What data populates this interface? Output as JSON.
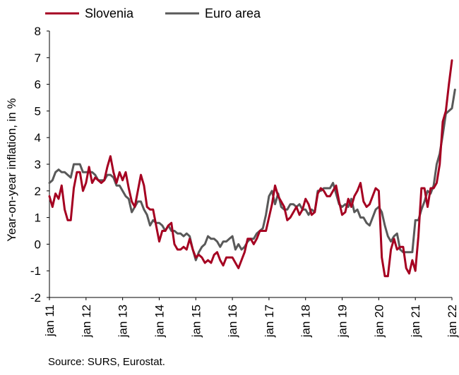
{
  "chart_data": {
    "type": "line",
    "title": "",
    "xlabel": "",
    "ylabel": "Year-on-year inflation, in %",
    "ylim": [
      -2,
      8
    ],
    "yticks": [
      -2,
      -1,
      0,
      1,
      2,
      3,
      4,
      5,
      6,
      7,
      8
    ],
    "xticks": [
      "jan 11",
      "jan 12",
      "jan 13",
      "jan 14",
      "jan 15",
      "jan 16",
      "jan 17",
      "jan 18",
      "jan 19",
      "jan 20",
      "jan 21",
      "jan 22"
    ],
    "x_start": "jan 11",
    "x_end": "jan 22",
    "frequency": "monthly",
    "grid": false,
    "legend_position": "top",
    "series": [
      {
        "name": "Slovenia",
        "color": "#A50021",
        "values": [
          1.8,
          1.4,
          1.9,
          1.7,
          2.2,
          1.3,
          0.9,
          0.9,
          2.1,
          2.7,
          2.7,
          2.0,
          2.3,
          2.9,
          2.3,
          2.5,
          2.4,
          2.3,
          2.4,
          2.9,
          3.3,
          2.7,
          2.3,
          2.7,
          2.4,
          2.7,
          2.1,
          1.6,
          1.4,
          2.0,
          2.6,
          2.2,
          1.4,
          1.3,
          1.3,
          0.7,
          0.1,
          0.5,
          0.5,
          0.7,
          0.8,
          0.0,
          -0.2,
          -0.2,
          -0.1,
          -0.2,
          0.2,
          -0.2,
          -0.5,
          -0.4,
          -0.5,
          -0.7,
          -0.6,
          -0.7,
          -0.4,
          -0.3,
          -0.6,
          -0.8,
          -0.5,
          -0.5,
          -0.5,
          -0.7,
          -0.9,
          -0.6,
          -0.3,
          0.2,
          0.2,
          0.0,
          0.2,
          0.5,
          0.5,
          0.5,
          1.0,
          1.5,
          2.2,
          1.8,
          1.6,
          1.4,
          0.9,
          1.0,
          1.2,
          1.4,
          1.1,
          1.3,
          1.7,
          1.5,
          1.1,
          1.2,
          1.9,
          2.1,
          2.0,
          1.8,
          1.8,
          2.0,
          2.2,
          1.6,
          1.1,
          1.2,
          1.7,
          1.4,
          1.8,
          2.0,
          2.3,
          1.6,
          1.4,
          1.5,
          1.8,
          2.1,
          2.0,
          -0.5,
          -1.2,
          -1.2,
          -0.2,
          0.2,
          -0.2,
          -0.1,
          -0.1,
          -0.9,
          -1.1,
          -0.6,
          -1.0,
          0.3,
          2.1,
          2.1,
          1.4,
          2.1,
          2.1,
          2.3,
          3.0,
          4.6,
          5.0,
          6.0,
          6.9
        ]
      },
      {
        "name": "Euro area",
        "color": "#595959",
        "values": [
          2.3,
          2.4,
          2.7,
          2.8,
          2.7,
          2.7,
          2.6,
          2.5,
          3.0,
          3.0,
          3.0,
          2.7,
          2.7,
          2.7,
          2.7,
          2.6,
          2.4,
          2.4,
          2.4,
          2.6,
          2.6,
          2.5,
          2.2,
          2.2,
          2.0,
          1.8,
          1.7,
          1.2,
          1.4,
          1.6,
          1.6,
          1.3,
          1.1,
          0.7,
          0.9,
          0.8,
          0.8,
          0.7,
          0.5,
          0.7,
          0.5,
          0.5,
          0.4,
          0.4,
          0.3,
          0.4,
          0.3,
          -0.2,
          -0.6,
          -0.3,
          -0.1,
          0.0,
          0.3,
          0.2,
          0.2,
          0.1,
          -0.1,
          0.1,
          0.1,
          0.2,
          0.3,
          -0.2,
          0.0,
          -0.2,
          -0.1,
          0.1,
          0.2,
          0.2,
          0.4,
          0.5,
          0.6,
          1.1,
          1.8,
          2.0,
          1.5,
          1.9,
          1.4,
          1.3,
          1.3,
          1.5,
          1.5,
          1.4,
          1.5,
          1.3,
          1.3,
          1.1,
          1.3,
          1.2,
          2.0,
          2.0,
          2.1,
          2.1,
          2.1,
          2.3,
          1.9,
          1.5,
          1.4,
          1.5,
          1.4,
          1.7,
          1.2,
          1.3,
          1.0,
          1.0,
          0.8,
          0.7,
          1.0,
          1.3,
          1.4,
          1.2,
          0.7,
          0.3,
          0.1,
          0.3,
          0.4,
          -0.2,
          -0.3,
          -0.3,
          -0.3,
          -0.3,
          0.9,
          0.9,
          1.3,
          1.6,
          2.0,
          1.9,
          2.2,
          3.0,
          3.4,
          4.1,
          4.9,
          5.0,
          5.1,
          5.8
        ]
      }
    ]
  },
  "footer": {
    "source": "Source: SURS, Eurostat."
  }
}
